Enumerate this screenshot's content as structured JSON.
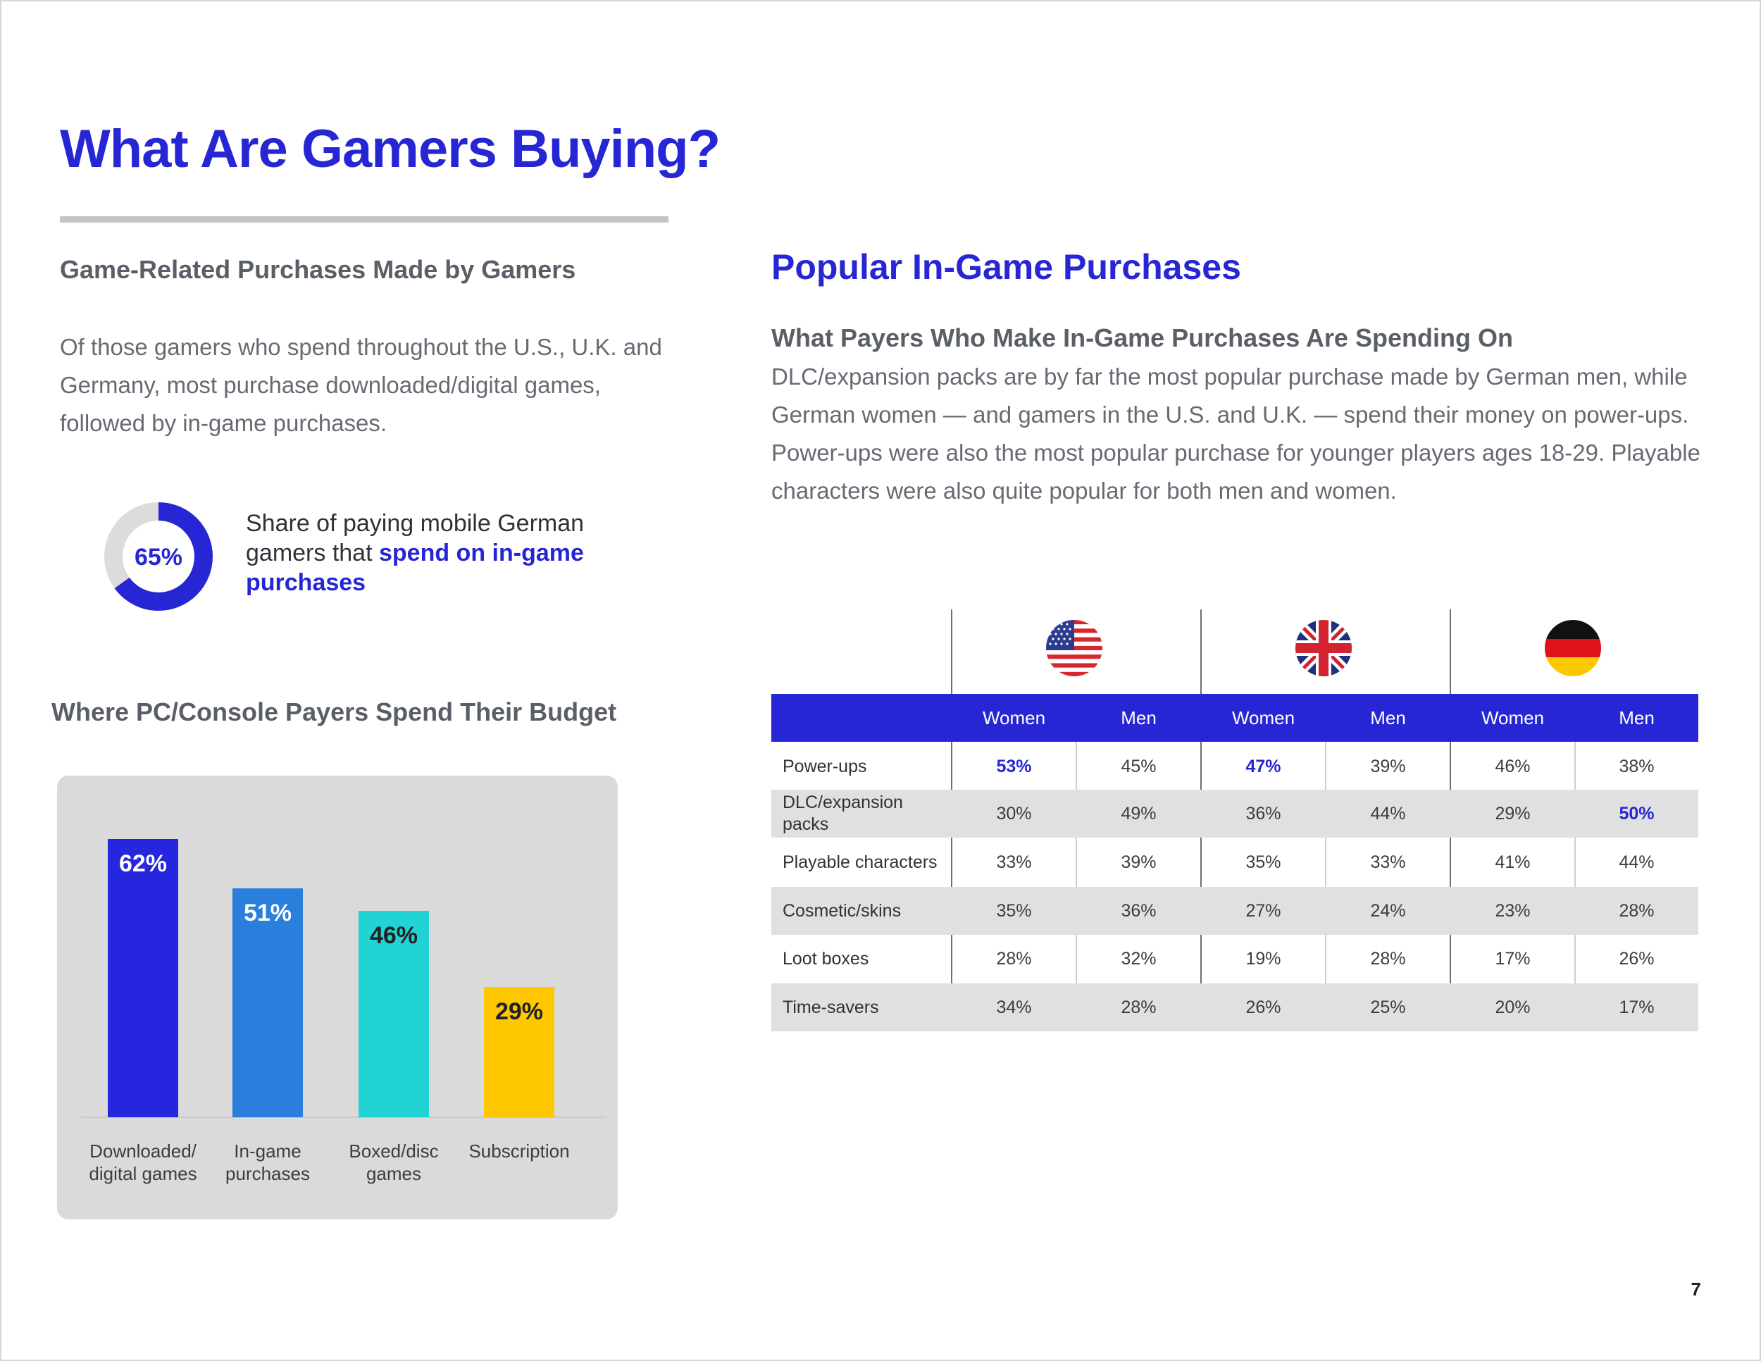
{
  "page": {
    "title": "What Are Gamers Buying?",
    "number": "7"
  },
  "left": {
    "heading": "Game-Related Purchases Made by Gamers",
    "body": "Of those gamers who spend throughout the U.S., U.K. and Germany, most purchase downloaded/digital games, followed by in-game purchases.",
    "stat": {
      "label": "65%",
      "value": 65,
      "caption_plain": "Share of paying mobile German gamers that ",
      "caption_highlight": "spend on in-game purchases",
      "colors": {
        "fill": "#2626d4",
        "track": "#dcdcdc"
      }
    },
    "chart_heading": "Where PC/Console Payers Spend Their Budget"
  },
  "chart_data": {
    "type": "bar",
    "title": "Where PC/Console Payers Spend Their Budget",
    "categories": [
      "Downloaded/\ndigital games",
      "In-game\npurchases",
      "Boxed/disc\ngames",
      "Subscription"
    ],
    "values": [
      62,
      51,
      46,
      29
    ],
    "value_labels": [
      "62%",
      "51%",
      "46%",
      "29%"
    ],
    "colors": [
      "#2626de",
      "#2a7fdc",
      "#22d3d6",
      "#fdc800"
    ],
    "label_colors": [
      "#ffffff",
      "#ffffff",
      "#222222",
      "#222222"
    ],
    "ylim": [
      0,
      100
    ],
    "grid": false
  },
  "right": {
    "title": "Popular In-Game Purchases",
    "subheading": "What Payers Who Make In-Game Purchases Are Spending On",
    "body": "DLC/expansion packs are by far the most popular purchase made by German men, while German women — and gamers in the U.S. and U.K. — spend their money on power-ups. Power-ups were also the most popular purchase for younger players ages 18-29. Playable characters were also quite popular for both men and women."
  },
  "table": {
    "countries": [
      {
        "flag": "us-flag-icon"
      },
      {
        "flag": "uk-flag-icon"
      },
      {
        "flag": "germany-flag-icon"
      }
    ],
    "columns": [
      "Women",
      "Men",
      "Women",
      "Men",
      "Women",
      "Men"
    ],
    "rows": [
      {
        "label": "Power-ups",
        "values": [
          "53%",
          "45%",
          "47%",
          "39%",
          "46%",
          "38%"
        ],
        "highlight": [
          0,
          2
        ]
      },
      {
        "label": "DLC/expansion packs",
        "values": [
          "30%",
          "49%",
          "36%",
          "44%",
          "29%",
          "50%"
        ],
        "highlight": [
          5
        ]
      },
      {
        "label": "Playable characters",
        "values": [
          "33%",
          "39%",
          "35%",
          "33%",
          "41%",
          "44%"
        ],
        "highlight": []
      },
      {
        "label": "Cosmetic/skins",
        "values": [
          "35%",
          "36%",
          "27%",
          "24%",
          "23%",
          "28%"
        ],
        "highlight": []
      },
      {
        "label": "Loot boxes",
        "values": [
          "28%",
          "32%",
          "19%",
          "28%",
          "17%",
          "26%"
        ],
        "highlight": []
      },
      {
        "label": "Time-savers",
        "values": [
          "34%",
          "28%",
          "26%",
          "25%",
          "20%",
          "17%"
        ],
        "highlight": []
      }
    ],
    "colors": {
      "header": "#2626d4",
      "highlight": "#2626d4",
      "shade": "#e0e0e0"
    }
  }
}
